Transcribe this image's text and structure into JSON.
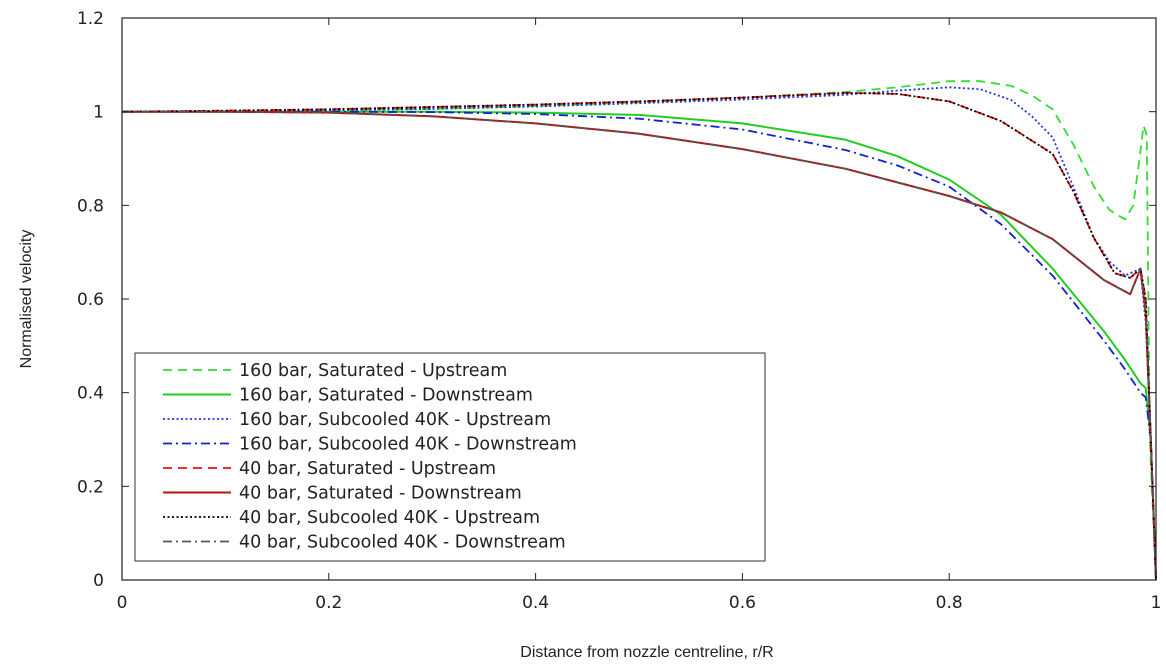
{
  "chart_data": {
    "type": "line",
    "title": "",
    "xlabel": "Distance from nozzle centreline, r/R",
    "ylabel": "Normalised velocity",
    "xlim": [
      0,
      1
    ],
    "ylim": [
      0,
      1.2
    ],
    "xticks": [
      {
        "value": 0,
        "label": "0"
      },
      {
        "value": 0.2,
        "label": "0.2"
      },
      {
        "value": 0.4,
        "label": "0.4"
      },
      {
        "value": 0.6,
        "label": "0.6"
      },
      {
        "value": 0.8,
        "label": "0.8"
      },
      {
        "value": 1,
        "label": "1"
      }
    ],
    "yticks": [
      {
        "value": 0,
        "label": "0"
      },
      {
        "value": 0.2,
        "label": "0.2"
      },
      {
        "value": 0.4,
        "label": "0.4"
      },
      {
        "value": 0.6,
        "label": "0.6"
      },
      {
        "value": 0.8,
        "label": "0.8"
      },
      {
        "value": 1,
        "label": "1"
      },
      {
        "value": 1.2,
        "label": "1.2"
      }
    ],
    "grid": false,
    "legend_position": "bottom-left",
    "series": [
      {
        "name": "160 bar, Saturated - Upstream",
        "color": "#33dd33",
        "style": "dashed",
        "points": [
          [
            0,
            1.0
          ],
          [
            0.1,
            1.001
          ],
          [
            0.2,
            1.003
          ],
          [
            0.3,
            1.006
          ],
          [
            0.4,
            1.012
          ],
          [
            0.5,
            1.02
          ],
          [
            0.6,
            1.03
          ],
          [
            0.7,
            1.042
          ],
          [
            0.75,
            1.052
          ],
          [
            0.8,
            1.065
          ],
          [
            0.83,
            1.065
          ],
          [
            0.86,
            1.055
          ],
          [
            0.88,
            1.035
          ],
          [
            0.9,
            1.005
          ],
          [
            0.92,
            0.93
          ],
          [
            0.94,
            0.84
          ],
          [
            0.955,
            0.79
          ],
          [
            0.97,
            0.77
          ],
          [
            0.978,
            0.8
          ],
          [
            0.984,
            0.9
          ],
          [
            0.988,
            0.97
          ],
          [
            0.991,
            0.95
          ],
          [
            0.994,
            0.3
          ],
          [
            1.0,
            0.0
          ]
        ]
      },
      {
        "name": "160 bar, Saturated - Downstream",
        "color": "#22cc22",
        "style": "solid",
        "points": [
          [
            0,
            1.0
          ],
          [
            0.1,
            1.0
          ],
          [
            0.2,
            1.0
          ],
          [
            0.3,
            1.0
          ],
          [
            0.4,
            0.998
          ],
          [
            0.5,
            0.993
          ],
          [
            0.6,
            0.975
          ],
          [
            0.7,
            0.94
          ],
          [
            0.75,
            0.905
          ],
          [
            0.8,
            0.855
          ],
          [
            0.85,
            0.78
          ],
          [
            0.9,
            0.665
          ],
          [
            0.95,
            0.53
          ],
          [
            0.97,
            0.47
          ],
          [
            0.985,
            0.42
          ],
          [
            0.99,
            0.41
          ],
          [
            0.995,
            0.3
          ],
          [
            1.0,
            0.0
          ]
        ]
      },
      {
        "name": "160 bar, Subcooled 40K - Upstream",
        "color": "#2233dd",
        "style": "dotted",
        "points": [
          [
            0,
            1.0
          ],
          [
            0.1,
            1.001
          ],
          [
            0.2,
            1.003
          ],
          [
            0.3,
            1.006
          ],
          [
            0.4,
            1.011
          ],
          [
            0.5,
            1.018
          ],
          [
            0.6,
            1.026
          ],
          [
            0.7,
            1.036
          ],
          [
            0.75,
            1.045
          ],
          [
            0.8,
            1.052
          ],
          [
            0.83,
            1.048
          ],
          [
            0.86,
            1.025
          ],
          [
            0.88,
            0.99
          ],
          [
            0.9,
            0.945
          ],
          [
            0.92,
            0.84
          ],
          [
            0.94,
            0.73
          ],
          [
            0.955,
            0.68
          ],
          [
            0.97,
            0.65
          ],
          [
            0.98,
            0.66
          ],
          [
            0.985,
            0.66
          ],
          [
            0.99,
            0.55
          ],
          [
            0.995,
            0.3
          ],
          [
            1.0,
            0.0
          ]
        ]
      },
      {
        "name": "160 bar, Subcooled 40K - Downstream",
        "color": "#1122cc",
        "style": "dashdot",
        "points": [
          [
            0,
            1.0
          ],
          [
            0.1,
            1.0
          ],
          [
            0.2,
            1.0
          ],
          [
            0.3,
            0.999
          ],
          [
            0.4,
            0.995
          ],
          [
            0.5,
            0.985
          ],
          [
            0.6,
            0.962
          ],
          [
            0.7,
            0.918
          ],
          [
            0.75,
            0.885
          ],
          [
            0.8,
            0.84
          ],
          [
            0.85,
            0.76
          ],
          [
            0.9,
            0.65
          ],
          [
            0.95,
            0.51
          ],
          [
            0.97,
            0.45
          ],
          [
            0.985,
            0.4
          ],
          [
            0.99,
            0.39
          ],
          [
            0.995,
            0.3
          ],
          [
            1.0,
            0.0
          ]
        ]
      },
      {
        "name": "40 bar, Saturated - Upstream",
        "color": "#ee1111",
        "style": "dashed",
        "points": [
          [
            0,
            1.0
          ],
          [
            0.1,
            1.002
          ],
          [
            0.2,
            1.005
          ],
          [
            0.3,
            1.01
          ],
          [
            0.4,
            1.015
          ],
          [
            0.5,
            1.022
          ],
          [
            0.6,
            1.03
          ],
          [
            0.7,
            1.04
          ],
          [
            0.75,
            1.038
          ],
          [
            0.8,
            1.022
          ],
          [
            0.85,
            0.98
          ],
          [
            0.9,
            0.91
          ],
          [
            0.92,
            0.83
          ],
          [
            0.94,
            0.73
          ],
          [
            0.96,
            0.655
          ],
          [
            0.975,
            0.645
          ],
          [
            0.985,
            0.665
          ],
          [
            0.99,
            0.6
          ],
          [
            0.995,
            0.3
          ],
          [
            1.0,
            0.0
          ]
        ]
      },
      {
        "name": "40 bar, Saturated - Downstream",
        "color": "#bb1111",
        "style": "solid",
        "points": [
          [
            0,
            1.0
          ],
          [
            0.1,
            1.0
          ],
          [
            0.2,
            0.998
          ],
          [
            0.3,
            0.99
          ],
          [
            0.4,
            0.975
          ],
          [
            0.5,
            0.953
          ],
          [
            0.6,
            0.92
          ],
          [
            0.7,
            0.878
          ],
          [
            0.8,
            0.82
          ],
          [
            0.85,
            0.785
          ],
          [
            0.9,
            0.728
          ],
          [
            0.95,
            0.64
          ],
          [
            0.975,
            0.61
          ],
          [
            0.985,
            0.665
          ],
          [
            0.99,
            0.57
          ],
          [
            0.995,
            0.3
          ],
          [
            1.0,
            0.0
          ]
        ]
      },
      {
        "name": "40 bar, Subcooled 40K - Upstream",
        "color": "#000000",
        "style": "dotted",
        "points": [
          [
            0,
            1.0
          ],
          [
            0.1,
            1.002
          ],
          [
            0.2,
            1.005
          ],
          [
            0.3,
            1.01
          ],
          [
            0.4,
            1.015
          ],
          [
            0.5,
            1.022
          ],
          [
            0.6,
            1.03
          ],
          [
            0.7,
            1.04
          ],
          [
            0.75,
            1.038
          ],
          [
            0.8,
            1.022
          ],
          [
            0.85,
            0.98
          ],
          [
            0.9,
            0.91
          ],
          [
            0.92,
            0.83
          ],
          [
            0.94,
            0.73
          ],
          [
            0.96,
            0.655
          ],
          [
            0.975,
            0.645
          ],
          [
            0.985,
            0.665
          ],
          [
            0.99,
            0.6
          ],
          [
            0.995,
            0.3
          ],
          [
            1.0,
            0.0
          ]
        ]
      },
      {
        "name": "40 bar, Subcooled 40K - Downstream",
        "color": "#555555",
        "style": "dashdot",
        "points": [
          [
            0,
            1.0
          ],
          [
            0.1,
            1.0
          ],
          [
            0.2,
            0.998
          ],
          [
            0.3,
            0.99
          ],
          [
            0.4,
            0.975
          ],
          [
            0.5,
            0.953
          ],
          [
            0.6,
            0.92
          ],
          [
            0.7,
            0.878
          ],
          [
            0.8,
            0.82
          ],
          [
            0.85,
            0.785
          ],
          [
            0.9,
            0.728
          ],
          [
            0.95,
            0.64
          ],
          [
            0.975,
            0.61
          ],
          [
            0.985,
            0.665
          ],
          [
            0.99,
            0.57
          ],
          [
            0.995,
            0.3
          ],
          [
            1.0,
            0.0
          ]
        ]
      }
    ]
  }
}
